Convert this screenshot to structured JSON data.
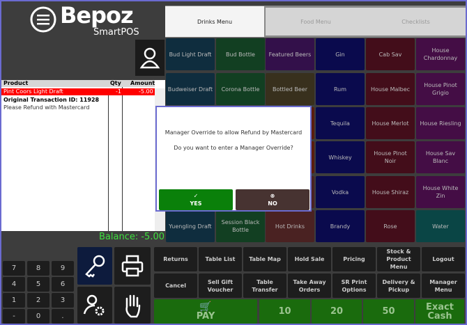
{
  "app": {
    "brand": "Bepoz",
    "sub": "SmartPOS"
  },
  "receipt": {
    "headers": [
      "Product",
      "Qty",
      "Amount"
    ],
    "rows": [
      {
        "product": "Pint Coors Light Draft",
        "qty": "-1",
        "amount": "-5.00",
        "selected": true
      },
      {
        "product": "Original Transaction ID: 11928",
        "qty": "",
        "amount": "",
        "bold": true
      },
      {
        "product": "Please Refund with Mastercard",
        "qty": "",
        "amount": ""
      }
    ],
    "balance": "Balance: -5.00"
  },
  "tabs": [
    "Drinks Menu",
    "Food Menu",
    "Checklists"
  ],
  "tiles": [
    [
      {
        "l": "Bud Light Draft",
        "c": "#0f2d3e"
      },
      {
        "l": "Bud Bottle",
        "c": "#123f22"
      },
      {
        "l": "Featured Beers",
        "c": "#33104a"
      },
      {
        "l": "Gin",
        "c": "#0a0a4d"
      },
      {
        "l": "Cab Sav",
        "c": "#430d1a"
      },
      {
        "l": "House Chardonnay",
        "c": "#440d45"
      }
    ],
    [
      {
        "l": "Budweiser Draft",
        "c": "#0f2d3e"
      },
      {
        "l": "Corona Bottle",
        "c": "#123f22"
      },
      {
        "l": "Bottled Beer",
        "c": "#38301d"
      },
      {
        "l": "Rum",
        "c": "#0a0a4d"
      },
      {
        "l": "House Malbec",
        "c": "#430d1a"
      },
      {
        "l": "House Pinot Grigio",
        "c": "#440d45"
      }
    ],
    [
      {
        "l": "",
        "c": "#0f2d3e"
      },
      {
        "l": "",
        "c": "#123f22"
      },
      {
        "l": "",
        "c": "#5a1d0d"
      },
      {
        "l": "Tequila",
        "c": "#0a0a4d"
      },
      {
        "l": "House Merlot",
        "c": "#430d1a"
      },
      {
        "l": "House Riesling",
        "c": "#440d45"
      }
    ],
    [
      {
        "l": "",
        "c": "#0f2d3e"
      },
      {
        "l": "",
        "c": "#123f22"
      },
      {
        "l": "",
        "c": "#5a1d0d"
      },
      {
        "l": "Whiskey",
        "c": "#0a0a4d"
      },
      {
        "l": "House Pinot Noir",
        "c": "#430d1a"
      },
      {
        "l": "House Sav Blanc",
        "c": "#440d45"
      }
    ],
    [
      {
        "l": "",
        "c": "#0f2d3e"
      },
      {
        "l": "",
        "c": "#123f22"
      },
      {
        "l": "",
        "c": "#4a2222"
      },
      {
        "l": "Vodka",
        "c": "#0a0a4d"
      },
      {
        "l": "House Shiraz",
        "c": "#430d1a"
      },
      {
        "l": "House White Zin",
        "c": "#440d45"
      }
    ],
    [
      {
        "l": "Yuengling Draft",
        "c": "#0f2d3e"
      },
      {
        "l": "Session Black Bottle",
        "c": "#123f22"
      },
      {
        "l": "Hot Drinks",
        "c": "#4a2222"
      },
      {
        "l": "Brandy",
        "c": "#0a0a4d"
      },
      {
        "l": "Rose",
        "c": "#430d1a"
      },
      {
        "l": "Water",
        "c": "#0a4545"
      }
    ]
  ],
  "dialog": {
    "line1": "Manager Override to allow Refund by Mastercard",
    "line2": "Do you want to enter a Manager Override?",
    "yes": "YES",
    "no": "NO",
    "yes_icon": "✓",
    "no_icon": "⊗"
  },
  "numpad": [
    "7",
    "8",
    "9",
    "4",
    "5",
    "6",
    "1",
    "2",
    "3",
    "-",
    "0",
    "."
  ],
  "functions": [
    [
      "Returns",
      "Table List",
      "Table Map",
      "Hold Sale",
      "Pricing",
      "Stock & Product Menu",
      "Logout"
    ],
    [
      "Cancel",
      "Sell Gift Voucher",
      "Table Transfer",
      "Take Away Orders",
      "SR Print Options",
      "Delivery & Pickup",
      "Manager Menu"
    ]
  ],
  "pay": {
    "pay": "PAY",
    "cash": [
      "10",
      "20",
      "50"
    ],
    "exact": "Exact Cash"
  }
}
